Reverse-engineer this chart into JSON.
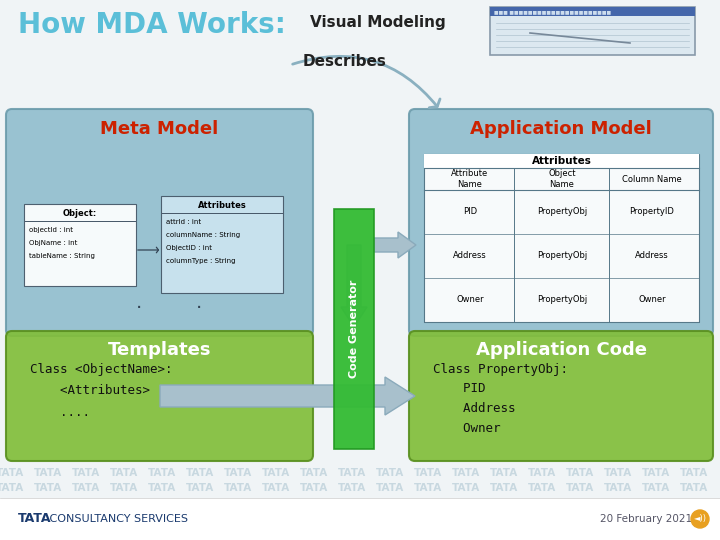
{
  "title": "How MDA Works:",
  "title_color": "#5bbfd8",
  "title_fontsize": 20,
  "bg_color": "#f0f4f6",
  "tata_watermark_color": "#c8d8e0",
  "footer_tata_bold": "TATA",
  "footer_tata_rest": " CONSULTANCY SERVICES",
  "footer_date": "20 February 2021",
  "visual_modeling_label": "Visual Modeling",
  "describes_label": "Describes",
  "code_generator_label": "Code Generator",
  "meta_model_title": "Meta Model",
  "app_model_title": "Application Model",
  "templates_title": "Templates",
  "app_code_title": "Application Code",
  "meta_model_color": "#8dbccc",
  "app_model_color": "#8dbccc",
  "templates_color": "#82be3a",
  "app_code_color": "#82be3a",
  "box_edge_color": "#6a9aaa",
  "green_edge_color": "#5a9020",
  "red_title_color": "#cc2200",
  "white_title_color": "#ffffff",
  "table_header": "Attributes",
  "table_col_headers": [
    "Attribute\nName",
    "Object\nName",
    "Column Name"
  ],
  "table_rows": [
    [
      "PID",
      "PropertyObj",
      "PropertyID"
    ],
    [
      "Address",
      "PropertyObj",
      "Address"
    ],
    [
      "Owner",
      "PropertyObj",
      "Owner"
    ]
  ],
  "templates_lines": [
    "Class <ObjectName>:",
    "    <Attributes>",
    "    ...."
  ],
  "app_code_lines": [
    "Class PropertyObj:",
    "    PID",
    "    Address",
    "    Owner"
  ],
  "arrow_color": "#a8c0cc",
  "arrow_edge": "#8aaabb",
  "code_gen_color": "#33bb33",
  "code_gen_edge": "#229922",
  "screenshot_bg": "#dce8f0",
  "screenshot_border": "#aabbcc"
}
